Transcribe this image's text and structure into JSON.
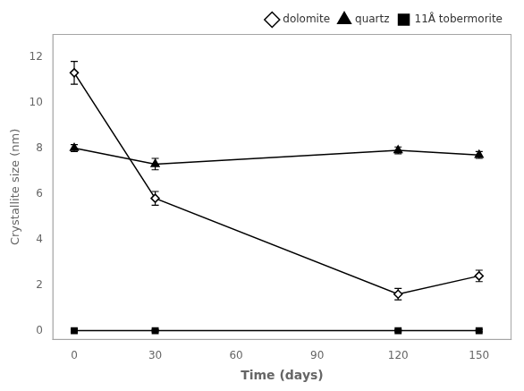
{
  "chart_data": {
    "type": "line",
    "x": [
      0,
      30,
      120,
      150
    ],
    "series": [
      {
        "name": "dolomite",
        "color": "#000000",
        "marker": "open_diamond",
        "line_style": "solid",
        "values": [
          11.3,
          5.8,
          1.6,
          2.4
        ],
        "yerr": [
          0.5,
          0.3,
          0.25,
          0.25
        ]
      },
      {
        "name": "quartz",
        "color": "#000000",
        "marker": "triangle",
        "line_style": "solid",
        "values": [
          8.0,
          7.3,
          7.9,
          7.7
        ],
        "yerr": [
          0.15,
          0.25,
          0.15,
          0.15
        ]
      },
      {
        "name": "11Å tobermorite",
        "color": "#000000",
        "marker": "square",
        "line_style": "solid",
        "values": [
          0.0,
          0.0,
          0.0,
          0.0
        ],
        "yerr": [
          0.05,
          0.05,
          0.05,
          0.05
        ]
      }
    ],
    "xlabel": "Time (days)",
    "ylabel": "Crystallite size (nm)",
    "xlim": [
      -8,
      162
    ],
    "ylim": [
      -0.4,
      13
    ],
    "xticks": [
      0,
      30,
      60,
      90,
      120,
      150
    ],
    "yticks": [
      0,
      2,
      4,
      6,
      8,
      10,
      12
    ],
    "legend": "upper right",
    "grid": false
  }
}
